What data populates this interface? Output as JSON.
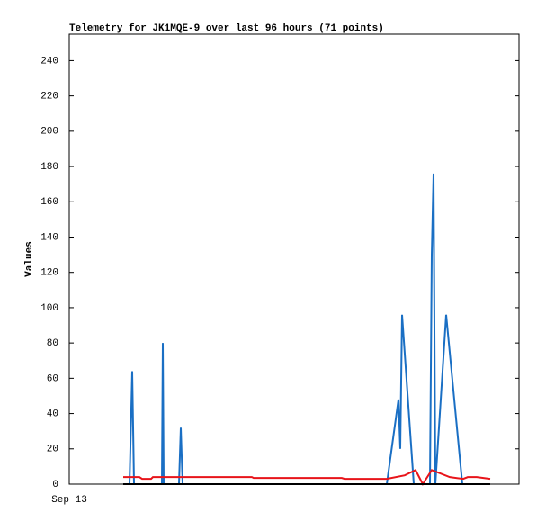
{
  "chart_data": {
    "type": "line",
    "title": "Telemetry for JK1MQE-9 over last 96 hours (71 points)",
    "y_label": "Values",
    "xlim": [
      0,
      100
    ],
    "xticks": [
      {
        "value": 0,
        "label": "Sep 13"
      }
    ],
    "ylim": [
      0,
      255
    ],
    "yticks": [
      0,
      20,
      40,
      60,
      80,
      100,
      120,
      140,
      160,
      180,
      200,
      220,
      240
    ],
    "grid": false,
    "series": [
      {
        "color": "#1a6fc4",
        "x": [
          13.4,
          14,
          14.4,
          20.6,
          20.8,
          21,
          24.4,
          24.8,
          25.2,
          70.6,
          73.2,
          73.6,
          74,
          76.6,
          80.2,
          80.6,
          81,
          81.4,
          83.8,
          87.4
        ],
        "values": [
          0,
          64,
          0,
          0,
          80,
          0,
          0,
          32,
          0,
          0,
          48,
          20,
          96,
          0,
          0,
          130,
          176,
          0,
          96,
          0
        ]
      },
      {
        "color": "#e8141a",
        "x": [
          12,
          15.6,
          16.2,
          18.2,
          18.6,
          40.6,
          41,
          60.6,
          61.2,
          70.6,
          74.6,
          77,
          78.6,
          80.6,
          84.6,
          87.6,
          88.6,
          90.6,
          93.6
        ],
        "values": [
          4,
          4,
          3,
          3,
          4,
          4,
          3.5,
          3.5,
          3,
          3,
          5,
          8,
          0,
          8,
          4,
          3,
          4,
          4,
          3
        ]
      },
      {
        "color": "#000000",
        "x": [
          12,
          93.6
        ],
        "values": [
          0,
          0
        ]
      }
    ]
  }
}
